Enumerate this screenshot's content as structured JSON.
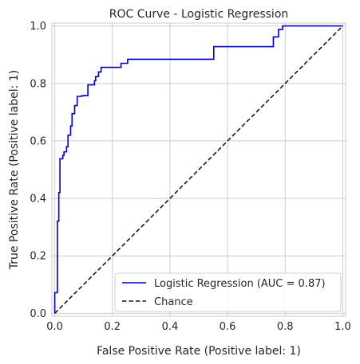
{
  "chart_data": {
    "type": "line",
    "title": "ROC Curve - Logistic Regression",
    "xlabel": "False Positive Rate (Positive label: 1)",
    "ylabel": "True Positive Rate (Positive label: 1)",
    "xlim": [
      -0.01,
      1.01
    ],
    "ylim": [
      -0.01,
      1.01
    ],
    "xticks": [
      "0.0",
      "0.2",
      "0.4",
      "0.6",
      "0.8",
      "1.0"
    ],
    "yticks": [
      "0.0",
      "0.2",
      "0.4",
      "0.6",
      "0.8",
      "1.0"
    ],
    "grid": true,
    "legend_position": "lower-right",
    "series": [
      {
        "name": "Logistic Regression (AUC = 0.87)",
        "color": "#0000cc",
        "style": "step",
        "x": [
          0.0,
          0.0,
          0.009,
          0.009,
          0.014,
          0.014,
          0.018,
          0.018,
          0.028,
          0.028,
          0.032,
          0.032,
          0.041,
          0.041,
          0.046,
          0.046,
          0.055,
          0.055,
          0.06,
          0.06,
          0.069,
          0.069,
          0.078,
          0.078,
          0.092,
          0.092,
          0.101,
          0.101,
          0.115,
          0.115,
          0.138,
          0.138,
          0.142,
          0.142,
          0.152,
          0.152,
          0.161,
          0.161,
          0.23,
          0.23,
          0.253,
          0.253,
          0.363,
          0.363,
          0.552,
          0.552,
          0.598,
          0.598,
          0.759,
          0.759,
          0.777,
          0.777,
          0.791,
          0.791,
          1.0
        ],
        "y": [
          0.0,
          0.072,
          0.072,
          0.321,
          0.321,
          0.42,
          0.42,
          0.538,
          0.538,
          0.55,
          0.55,
          0.562,
          0.562,
          0.58,
          0.58,
          0.62,
          0.62,
          0.652,
          0.652,
          0.695,
          0.695,
          0.723,
          0.723,
          0.755,
          0.755,
          0.757,
          0.757,
          0.758,
          0.758,
          0.795,
          0.795,
          0.81,
          0.81,
          0.824,
          0.824,
          0.84,
          0.84,
          0.856,
          0.856,
          0.87,
          0.87,
          0.884,
          0.884,
          0.884,
          0.884,
          0.928,
          0.928,
          0.928,
          0.928,
          0.962,
          0.962,
          0.988,
          0.988,
          1.0,
          1.0
        ]
      },
      {
        "name": "Chance",
        "color": "#1a1a1a",
        "style": "dashed",
        "x": [
          0.0,
          1.0
        ],
        "y": [
          0.0,
          1.0
        ]
      }
    ]
  }
}
